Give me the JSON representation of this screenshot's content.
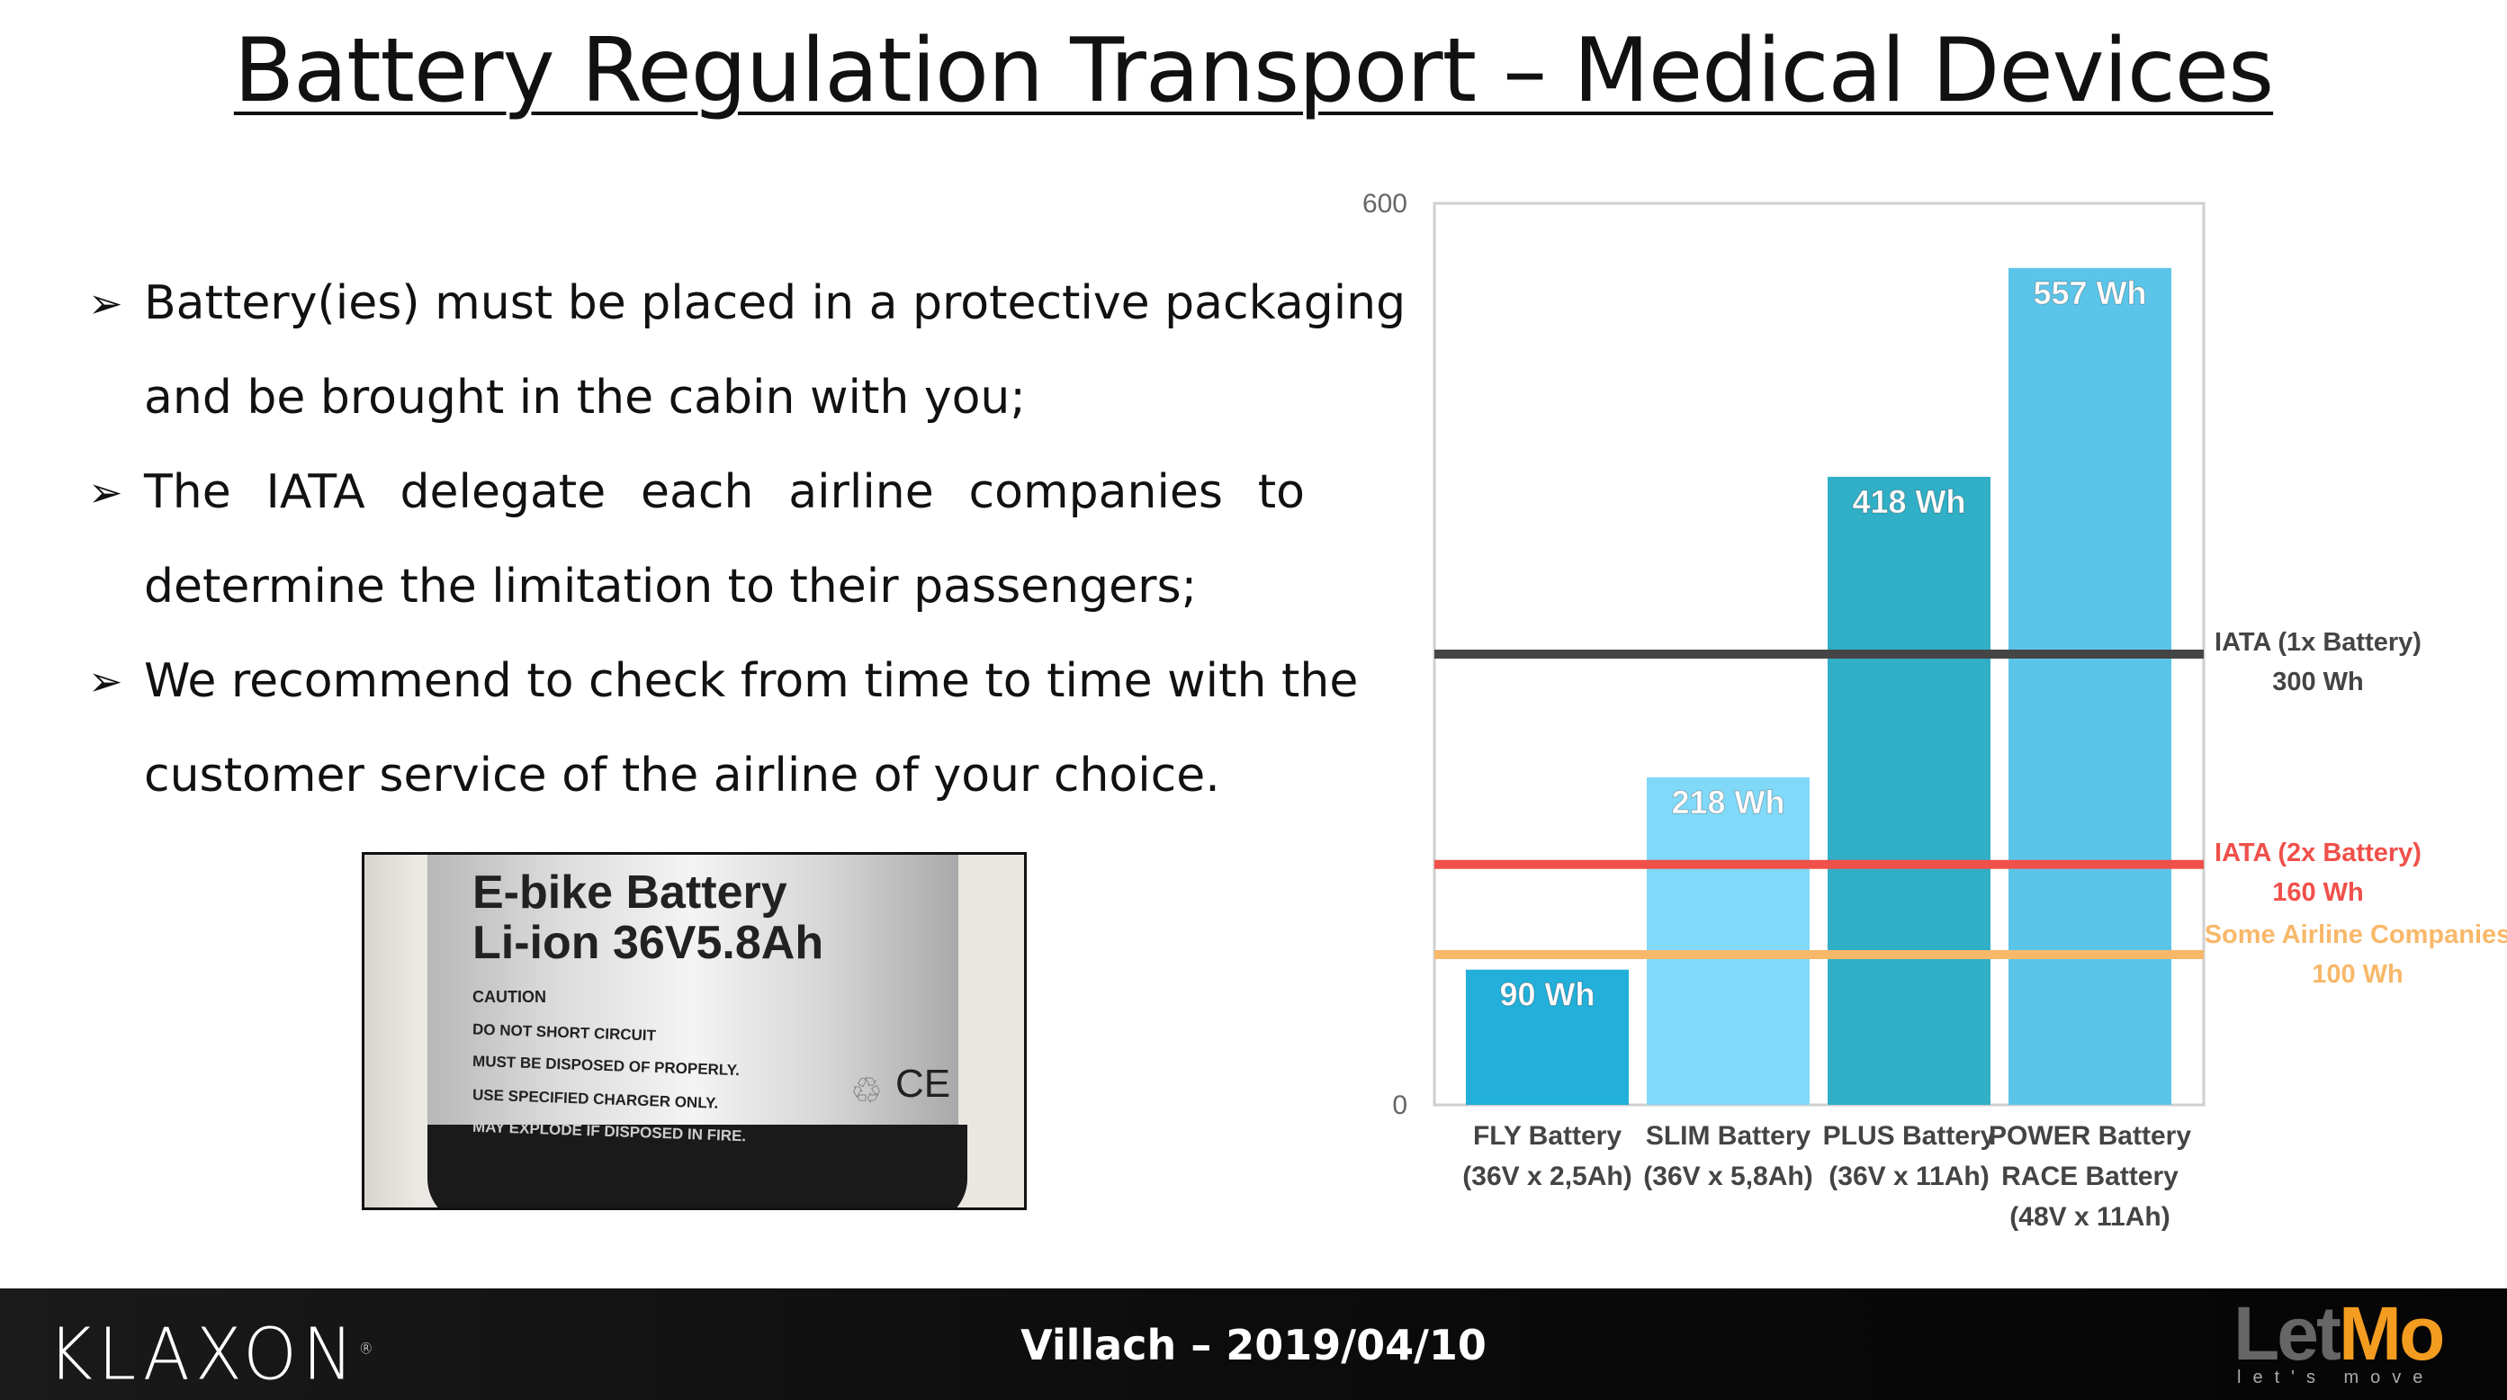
{
  "title": "Battery Regulation Transport – Medical Devices",
  "bullets": [
    {
      "lines": [
        "Battery(ies) must be placed in a protective packaging",
        "and be brought in the cabin with you;"
      ]
    },
    {
      "lines": [
        "The IATA delegate each airline companies to",
        "determine the limitation to their passengers;"
      ]
    },
    {
      "lines": [
        "We recommend to check from time to time with the",
        "customer service of the airline of your choice."
      ]
    }
  ],
  "photo": {
    "line1": "E-bike Battery",
    "line2": "Li-ion 36V5.8Ah",
    "caution": "CAUTION",
    "warnings": [
      "DO NOT SHORT CIRCUIT",
      "MUST BE DISPOSED OF PROPERLY.",
      "USE SPECIFIED CHARGER ONLY.",
      "MAY EXPLODE IF DISPOSED IN FIRE."
    ],
    "marks": "CE"
  },
  "chart_data": {
    "type": "bar",
    "ylim": [
      0,
      600
    ],
    "yticks": [
      "0",
      "600"
    ],
    "categories": [
      [
        "FLY Battery",
        "(36V x 2,5Ah)"
      ],
      [
        "SLIM Battery",
        "(36V x 5,8Ah)"
      ],
      [
        "PLUS Battery",
        "(36V x 11Ah)"
      ],
      [
        "POWER Battery",
        "RACE Battery",
        "(48V x 11Ah)"
      ]
    ],
    "values": [
      90,
      218,
      418,
      557
    ],
    "data_labels": [
      "90 Wh",
      "218 Wh",
      "418 Wh",
      "557 Wh"
    ],
    "bar_colors": [
      "#22afd9",
      "#80d9f8",
      "#30afc6",
      "#5bc5e9"
    ],
    "reference_lines": [
      {
        "value": 300,
        "label": [
          "IATA (1x Battery)",
          "300 Wh"
        ],
        "color": "#454545"
      },
      {
        "value": 160,
        "label": [
          "IATA (2x Battery)",
          "160 Wh"
        ],
        "color": "#f0504a"
      },
      {
        "value": 100,
        "label": [
          "Some Airline Companies",
          "100 Wh"
        ],
        "color": "#f8b86a"
      }
    ]
  },
  "footer": {
    "text": "Villach – 2019/04/10",
    "left_logo": "KLAXON",
    "right_logo": "LetMo",
    "right_logo_tagline": "let's move"
  }
}
